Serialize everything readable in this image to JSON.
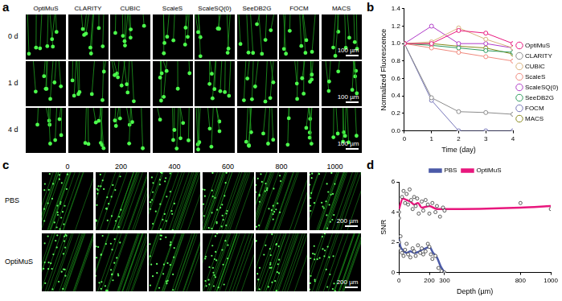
{
  "image_panels": [
    {
      "panel": "a",
      "columns": [
        "OptiMuS",
        "CLARITY",
        "CUBIC",
        "ScaleS",
        "ScaleSQ(0)",
        "SeeDB2G",
        "FOCM",
        "MACS"
      ],
      "rows": [
        "0 d",
        "1 d",
        "4 d"
      ],
      "scale_bar": "100 µm"
    },
    {
      "panel": "c",
      "columns": [
        "0",
        "200",
        "400",
        "600",
        "800",
        "1000"
      ],
      "rows": [
        "PBS",
        "OptiMuS"
      ],
      "scale_bar": "200 µm"
    }
  ],
  "chart_data": [
    {
      "panel": "b",
      "type": "line",
      "x_label": "Time (day)",
      "y_label": "Normalized Fluorescence",
      "x": [
        0,
        1,
        2,
        3,
        4
      ],
      "xlim": [
        0,
        4
      ],
      "xticks": [
        0,
        1,
        2,
        3,
        4
      ],
      "ylim": [
        0,
        1.4
      ],
      "yticks": [
        {
          "value": 0,
          "label": "0.0"
        },
        0.2,
        0.4,
        0.6,
        0.8,
        {
          "value": 1,
          "label": "1.0"
        },
        1.2,
        1.4
      ],
      "grid": false,
      "legend": "right",
      "marker": "circle_open",
      "series": [
        {
          "name": "OptiMuS",
          "color": "#e8177d",
          "values": [
            1,
            1.0,
            1.15,
            1.12,
            1.0
          ]
        },
        {
          "name": "CLARITY",
          "color": "#8c8c8c",
          "values": [
            1,
            0.38,
            0.22,
            0.21,
            0.19
          ]
        },
        {
          "name": "CUBIC",
          "color": "#d9b27c",
          "values": [
            1,
            1.02,
            1.18,
            1.05,
            0.95
          ]
        },
        {
          "name": "ScaleS",
          "color": "#f08a7e",
          "values": [
            1,
            0.95,
            0.9,
            0.85,
            0.8
          ]
        },
        {
          "name": "ScaleSQ(0)",
          "color": "#b03cc8",
          "values": [
            1,
            1.2,
            1.0,
            1.0,
            0.95
          ]
        },
        {
          "name": "SeeDB2G",
          "color": "#2e9b5e",
          "values": [
            1,
            0.98,
            0.95,
            0.92,
            0.9
          ]
        },
        {
          "name": "FOCM",
          "color": "#7575b8",
          "values": [
            1,
            0.35,
            0,
            0,
            0
          ]
        },
        {
          "name": "MACS",
          "color": "#8a8a1e",
          "values": [
            1,
            1.0,
            0.97,
            0.95,
            0.88
          ]
        }
      ]
    },
    {
      "panel": "d",
      "type": "line",
      "x_label": "Depth (µm)",
      "y_label": "SNR",
      "xlim": [
        0,
        1000
      ],
      "xticks": [
        0,
        200,
        300,
        800,
        1000
      ],
      "ylim": [
        0,
        6
      ],
      "yticks": [
        0,
        2,
        4,
        6
      ],
      "grid": false,
      "legend": "top",
      "marker": "circle_open",
      "series": [
        {
          "name": "PBS",
          "color": "#4b5aa8",
          "type": "line",
          "x": [
            0,
            10,
            25,
            50,
            75,
            100,
            125,
            150,
            175,
            200,
            225,
            250,
            275,
            300
          ],
          "values": [
            2.2,
            1.7,
            1.5,
            1.3,
            1.4,
            1.3,
            1.35,
            1.5,
            1.6,
            1.7,
            1.3,
            1.0,
            0.4,
            0
          ],
          "points_x": [
            0,
            0,
            10,
            20,
            30,
            40,
            50,
            60,
            75,
            90,
            100,
            110,
            125,
            140,
            150,
            160,
            175,
            190,
            200,
            210,
            220,
            240,
            260,
            280,
            300
          ],
          "points_y": [
            2.0,
            1.6,
            2.4,
            1.3,
            1.1,
            1.5,
            1.9,
            1.2,
            1.0,
            1.6,
            1.4,
            1.1,
            1.8,
            1.3,
            1.6,
            1.2,
            1.4,
            1.9,
            1.7,
            1.2,
            0.9,
            1.1,
            0.3,
            0.1,
            0.0
          ]
        },
        {
          "name": "OptiMuS",
          "color": "#e8177d",
          "type": "line",
          "x": [
            0,
            25,
            50,
            75,
            100,
            125,
            150,
            200,
            250,
            300,
            800,
            1000
          ],
          "values": [
            4.2,
            4.9,
            4.8,
            4.7,
            4.5,
            4.6,
            4.3,
            4.4,
            4.2,
            4.2,
            4.3,
            4.4
          ],
          "points_x": [
            0,
            0,
            20,
            30,
            40,
            50,
            60,
            70,
            80,
            90,
            100,
            110,
            120,
            130,
            150,
            160,
            175,
            190,
            200,
            220,
            240,
            250,
            270,
            290,
            300,
            800,
            1000
          ],
          "points_y": [
            3.6,
            4.0,
            5.0,
            5.4,
            4.6,
            5.2,
            4.5,
            5.5,
            4.8,
            4.2,
            5.0,
            4.4,
            4.9,
            3.9,
            4.7,
            4.1,
            4.8,
            4.5,
            3.9,
            4.6,
            4.0,
            4.4,
            3.7,
            4.3,
            4.1,
            4.6,
            4.2
          ]
        }
      ]
    }
  ]
}
